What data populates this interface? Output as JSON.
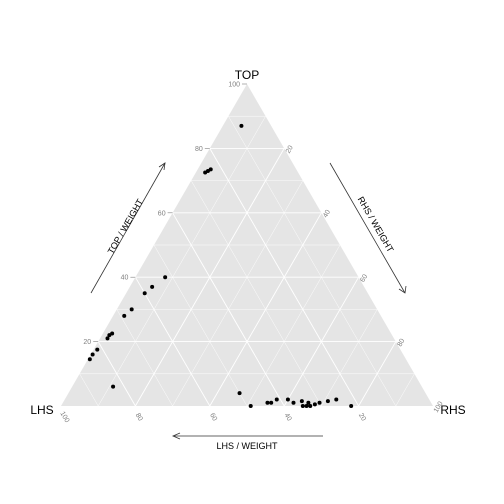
{
  "chart_data": {
    "type": "scatter",
    "subtype": "ternary",
    "vertices": {
      "top": "TOP",
      "left": "LHS",
      "right": "RHS"
    },
    "axis_titles": {
      "top": "TOP / WEIGHT",
      "right": "RHS / WEIGHT",
      "left": "LHS / WEIGHT"
    },
    "ticks": [
      20,
      40,
      60,
      80,
      100
    ],
    "range": [
      0,
      100
    ],
    "grid": true,
    "gridline_steps": [
      10,
      20,
      30,
      40,
      50,
      60,
      70,
      80,
      90
    ],
    "colors": {
      "panel": "#e5e5e5",
      "gridline": "#ffffff",
      "point": "#000000",
      "tick_text": "#7f7f7f",
      "arrow": "#333333"
    },
    "points": [
      {
        "top": 87,
        "rhs": 5
      },
      {
        "top": 73,
        "rhs": 3
      },
      {
        "top": 73.5,
        "rhs": 3.5
      },
      {
        "top": 72.5,
        "rhs": 2.5
      },
      {
        "top": 40,
        "rhs": 8
      },
      {
        "top": 37,
        "rhs": 6
      },
      {
        "top": 35,
        "rhs": 5
      },
      {
        "top": 30,
        "rhs": 4
      },
      {
        "top": 28,
        "rhs": 3
      },
      {
        "top": 22.5,
        "rhs": 2.5
      },
      {
        "top": 22,
        "rhs": 2
      },
      {
        "top": 21,
        "rhs": 2
      },
      {
        "top": 17.5,
        "rhs": 1
      },
      {
        "top": 16,
        "rhs": 0.5
      },
      {
        "top": 14.5,
        "rhs": 0.5
      },
      {
        "top": 6,
        "rhs": 11
      },
      {
        "top": 4,
        "rhs": 46
      },
      {
        "top": 0,
        "rhs": 51
      },
      {
        "top": 2,
        "rhs": 57
      },
      {
        "top": 1,
        "rhs": 56
      },
      {
        "top": 1,
        "rhs": 55
      },
      {
        "top": 2,
        "rhs": 60
      },
      {
        "top": 1,
        "rhs": 62
      },
      {
        "top": 1.5,
        "rhs": 64
      },
      {
        "top": 1,
        "rhs": 66
      },
      {
        "top": 0,
        "rhs": 65
      },
      {
        "top": 0,
        "rhs": 66
      },
      {
        "top": 0,
        "rhs": 67
      },
      {
        "top": 0.5,
        "rhs": 68
      },
      {
        "top": 1,
        "rhs": 69
      },
      {
        "top": 1.5,
        "rhs": 71
      },
      {
        "top": 2,
        "rhs": 73
      },
      {
        "top": 0,
        "rhs": 78
      }
    ]
  }
}
